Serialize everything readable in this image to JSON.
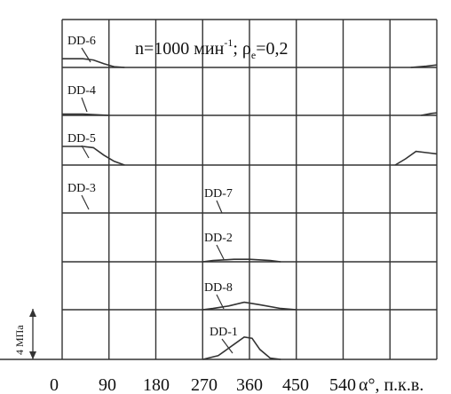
{
  "chart_data": {
    "type": "line",
    "title_main": "n=1000 мин",
    "title_sup": "-1",
    "title_mid": "; ρ",
    "title_sub": "e",
    "title_end": "=0,2",
    "xlabel": "α°, п.к.в.",
    "x_ticks": [
      "0",
      "90",
      "180",
      "270",
      "360",
      "450",
      "540"
    ],
    "xlim": [
      0,
      720
    ],
    "scale_label": "4 МПа",
    "scale_value_mpa": 4,
    "grid": true,
    "series": [
      {
        "name": "DD-6",
        "row": 0,
        "points": [
          [
            0,
            0.35
          ],
          [
            40,
            0.35
          ],
          [
            60,
            0.3
          ],
          [
            80,
            0.15
          ],
          [
            100,
            0.03
          ],
          [
            120,
            0
          ]
        ],
        "points_wrap": [
          [
            670,
            0
          ],
          [
            700,
            0.05
          ],
          [
            720,
            0.1
          ]
        ]
      },
      {
        "name": "DD-4",
        "row": 1,
        "points": [
          [
            0,
            0.05
          ],
          [
            40,
            0.05
          ],
          [
            70,
            0.02
          ],
          [
            90,
            0
          ]
        ],
        "points_wrap": [
          [
            690,
            0
          ],
          [
            710,
            0.08
          ],
          [
            720,
            0.1
          ]
        ]
      },
      {
        "name": "DD-5",
        "row": 2,
        "points": [
          [
            0,
            0.75
          ],
          [
            40,
            0.75
          ],
          [
            60,
            0.7
          ],
          [
            80,
            0.4
          ],
          [
            100,
            0.15
          ],
          [
            120,
            0
          ]
        ],
        "points_wrap": [
          [
            640,
            0
          ],
          [
            660,
            0.25
          ],
          [
            680,
            0.55
          ],
          [
            700,
            0.5
          ],
          [
            720,
            0.45
          ]
        ]
      },
      {
        "name": "DD-3",
        "row": 3,
        "points": []
      },
      {
        "name": "DD-7",
        "row": 4,
        "points": []
      },
      {
        "name": "DD-2",
        "row": 5,
        "points": [
          [
            270,
            0
          ],
          [
            290,
            0.05
          ],
          [
            330,
            0.1
          ],
          [
            360,
            0.1
          ],
          [
            400,
            0.05
          ],
          [
            420,
            0
          ]
        ]
      },
      {
        "name": "DD-8",
        "row": 6,
        "points": [
          [
            270,
            0
          ],
          [
            290,
            0.05
          ],
          [
            320,
            0.15
          ],
          [
            350,
            0.3
          ],
          [
            380,
            0.2
          ],
          [
            420,
            0.05
          ],
          [
            450,
            0
          ]
        ]
      },
      {
        "name": "DD-1",
        "row": 7,
        "points": [
          [
            270,
            0
          ],
          [
            300,
            0.15
          ],
          [
            330,
            0.6
          ],
          [
            350,
            0.9
          ],
          [
            365,
            0.85
          ],
          [
            380,
            0.4
          ],
          [
            400,
            0.05
          ],
          [
            420,
            0
          ]
        ]
      }
    ]
  }
}
